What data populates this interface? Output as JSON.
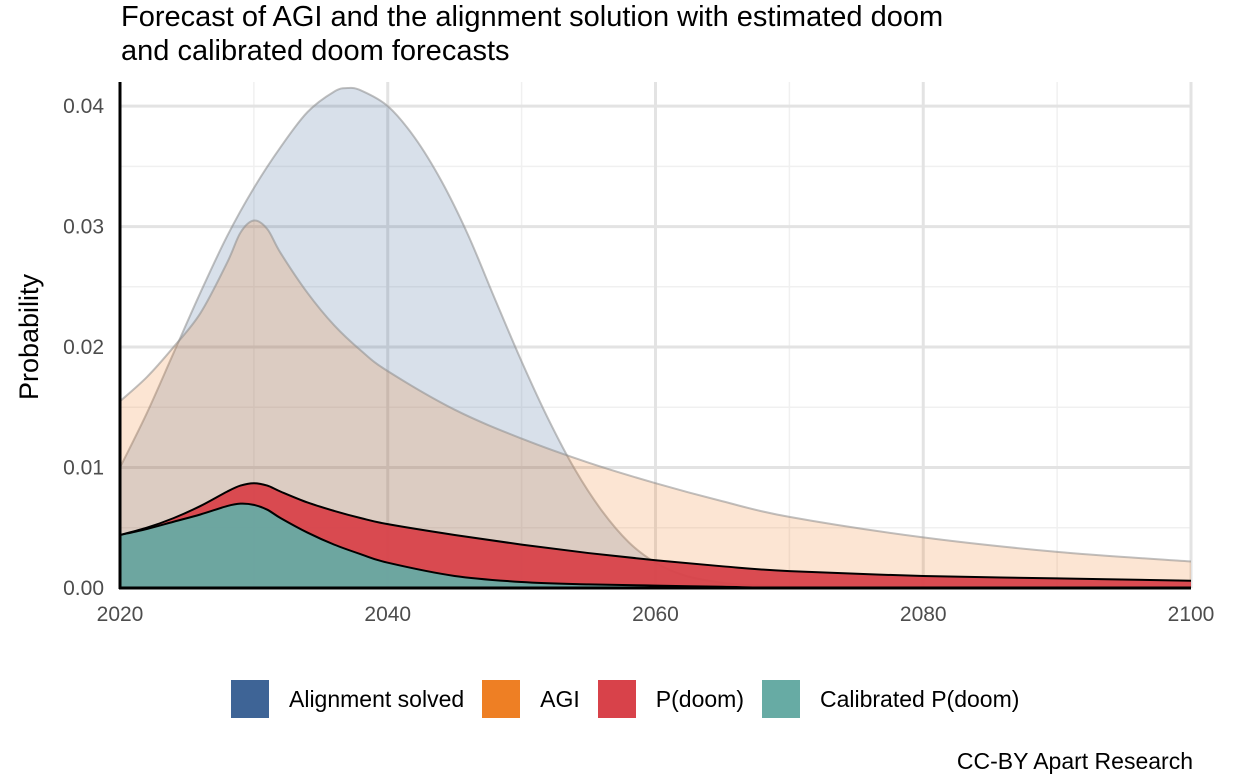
{
  "chart_data": {
    "type": "area",
    "title_lines": [
      "Forecast of AGI and the alignment solution with estimated doom",
      "and calibrated doom forecasts"
    ],
    "xlabel": "",
    "ylabel": "Probability",
    "xlim": [
      2020,
      2100
    ],
    "ylim": [
      0,
      0.042
    ],
    "x_ticks": [
      2020,
      2040,
      2060,
      2080,
      2100
    ],
    "x_tick_labels": [
      "2020",
      "2040",
      "2060",
      "2080",
      "2100"
    ],
    "y_ticks": [
      0,
      0.01,
      0.02,
      0.03,
      0.04
    ],
    "y_tick_labels": [
      "0.00",
      "0.01",
      "0.02",
      "0.03",
      "0.04"
    ],
    "grid": true,
    "legend_position": "bottom",
    "series": [
      {
        "name": "Alignment solved",
        "color": "#3e6496",
        "fill_opacity": 0.2,
        "x": [
          2020,
          2022,
          2024,
          2026,
          2028,
          2030,
          2032,
          2034,
          2036,
          2037,
          2038,
          2040,
          2042,
          2044,
          2046,
          2048,
          2050,
          2052,
          2054,
          2056,
          2058,
          2060,
          2062,
          2064,
          2066,
          2068,
          2070,
          2075,
          2080,
          2090,
          2100
        ],
        "values": [
          0.01,
          0.0145,
          0.0195,
          0.0245,
          0.0292,
          0.0332,
          0.0366,
          0.0395,
          0.0412,
          0.0415,
          0.0413,
          0.04,
          0.0374,
          0.0338,
          0.0293,
          0.024,
          0.0188,
          0.014,
          0.0098,
          0.0064,
          0.0038,
          0.0021,
          0.0011,
          0.0006,
          0.0003,
          0.0002,
          0.0001,
          0.0,
          0.0,
          0.0,
          0.0
        ]
      },
      {
        "name": "AGI",
        "color": "#ee7f24",
        "fill_opacity": 0.2,
        "x": [
          2020,
          2022,
          2024,
          2026,
          2028,
          2029,
          2030,
          2031,
          2032,
          2034,
          2036,
          2038,
          2040,
          2045,
          2050,
          2055,
          2060,
          2065,
          2070,
          2080,
          2090,
          2100
        ],
        "values": [
          0.0155,
          0.0175,
          0.02,
          0.0228,
          0.027,
          0.0295,
          0.0305,
          0.0298,
          0.0278,
          0.0245,
          0.0218,
          0.0197,
          0.018,
          0.0148,
          0.0124,
          0.0104,
          0.0087,
          0.0072,
          0.0059,
          0.0042,
          0.003,
          0.0022
        ]
      },
      {
        "name": "P(doom)",
        "color": "#d8424a",
        "fill_opacity": 0.95,
        "x": [
          2020,
          2022,
          2024,
          2026,
          2028,
          2029,
          2030,
          2031,
          2032,
          2034,
          2036,
          2038,
          2040,
          2045,
          2050,
          2055,
          2060,
          2065,
          2070,
          2080,
          2090,
          2100
        ],
        "values": [
          0.0044,
          0.005,
          0.0058,
          0.0068,
          0.008,
          0.0085,
          0.0087,
          0.0085,
          0.008,
          0.0071,
          0.0064,
          0.0058,
          0.0053,
          0.0044,
          0.0036,
          0.0029,
          0.0023,
          0.0018,
          0.0014,
          0.001,
          0.0008,
          0.0006
        ]
      },
      {
        "name": "Calibrated P(doom)",
        "color": "#67aba4",
        "fill_opacity": 0.95,
        "x": [
          2020,
          2022,
          2024,
          2026,
          2028,
          2029,
          2030,
          2031,
          2032,
          2034,
          2036,
          2038,
          2040,
          2045,
          2050,
          2055,
          2060,
          2065,
          2070,
          2080,
          2090,
          2100
        ],
        "values": [
          0.0044,
          0.0049,
          0.0055,
          0.0061,
          0.0068,
          0.007,
          0.0069,
          0.0065,
          0.0058,
          0.0046,
          0.0036,
          0.0028,
          0.0021,
          0.001,
          0.0005,
          0.0003,
          0.0002,
          0.0001,
          0.0,
          0.0,
          0.0,
          0.0
        ]
      }
    ],
    "caption": "CC-BY Apart Research"
  }
}
